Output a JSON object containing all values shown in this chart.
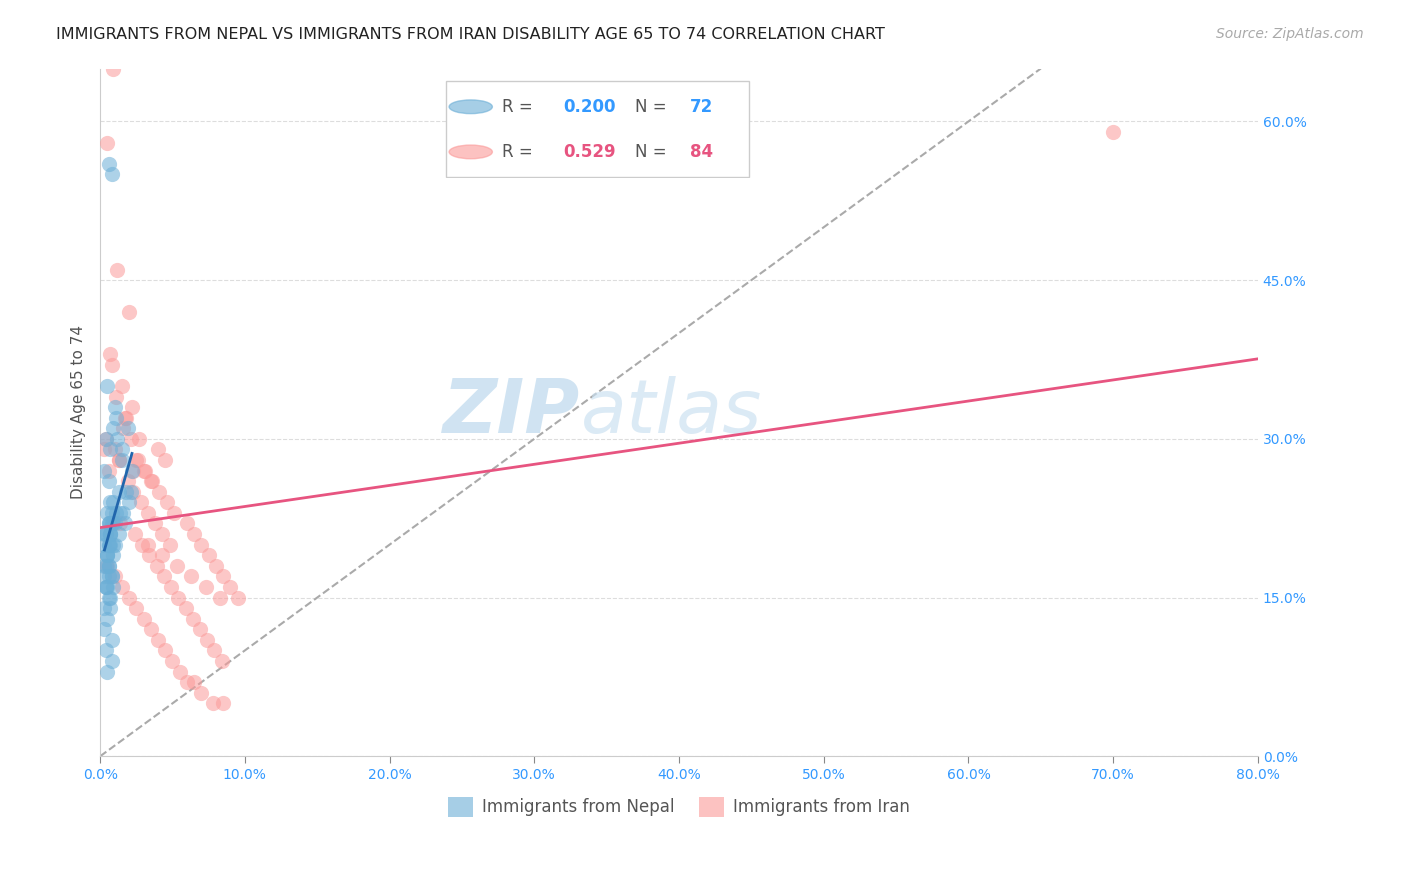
{
  "title": "IMMIGRANTS FROM NEPAL VS IMMIGRANTS FROM IRAN DISABILITY AGE 65 TO 74 CORRELATION CHART",
  "source": "Source: ZipAtlas.com",
  "xlabel": "",
  "ylabel": "Disability Age 65 to 74",
  "nepal_R": 0.2,
  "nepal_N": 72,
  "iran_R": 0.529,
  "iran_N": 84,
  "xlim": [
    0.0,
    0.8
  ],
  "ylim": [
    0.0,
    0.65
  ],
  "x_ticks": [
    0.0,
    0.1,
    0.2,
    0.3,
    0.4,
    0.5,
    0.6,
    0.7,
    0.8
  ],
  "y_ticks": [
    0.0,
    0.15,
    0.3,
    0.45,
    0.6
  ],
  "nepal_color": "#6baed6",
  "iran_color": "#fb9a99",
  "nepal_line_color": "#2166ac",
  "iran_line_color": "#e75480",
  "diagonal_color": "#aaaaaa",
  "grid_color": "#dddddd",
  "title_color": "#222222",
  "axis_label_color": "#555555",
  "tick_label_color": "#3399ff",
  "right_tick_color": "#3399ff",
  "legend_R_color_nepal": "#3399ff",
  "legend_N_color_nepal": "#3399ff",
  "legend_R_color_iran": "#e75480",
  "legend_N_color_iran": "#e75480",
  "nepal_x": [
    0.006,
    0.008,
    0.005,
    0.004,
    0.007,
    0.01,
    0.003,
    0.012,
    0.015,
    0.009,
    0.006,
    0.011,
    0.007,
    0.013,
    0.008,
    0.005,
    0.004,
    0.006,
    0.009,
    0.003,
    0.005,
    0.007,
    0.006,
    0.008,
    0.004,
    0.01,
    0.006,
    0.007,
    0.005,
    0.009,
    0.003,
    0.008,
    0.006,
    0.011,
    0.004,
    0.007,
    0.005,
    0.006,
    0.009,
    0.003,
    0.007,
    0.004,
    0.008,
    0.006,
    0.01,
    0.005,
    0.007,
    0.003,
    0.006,
    0.009,
    0.004,
    0.008,
    0.005,
    0.007,
    0.003,
    0.006,
    0.009,
    0.004,
    0.008,
    0.005,
    0.007,
    0.003,
    0.019,
    0.015,
    0.022,
    0.018,
    0.014,
    0.013,
    0.017,
    0.016,
    0.02,
    0.021
  ],
  "nepal_y": [
    0.56,
    0.55,
    0.35,
    0.3,
    0.29,
    0.33,
    0.27,
    0.3,
    0.28,
    0.31,
    0.26,
    0.32,
    0.24,
    0.25,
    0.22,
    0.23,
    0.21,
    0.22,
    0.24,
    0.2,
    0.19,
    0.21,
    0.18,
    0.17,
    0.16,
    0.2,
    0.15,
    0.14,
    0.13,
    0.16,
    0.12,
    0.11,
    0.22,
    0.23,
    0.21,
    0.2,
    0.19,
    0.18,
    0.22,
    0.17,
    0.21,
    0.16,
    0.23,
    0.2,
    0.22,
    0.19,
    0.21,
    0.18,
    0.17,
    0.2,
    0.1,
    0.09,
    0.08,
    0.22,
    0.21,
    0.2,
    0.19,
    0.18,
    0.17,
    0.16,
    0.15,
    0.14,
    0.31,
    0.29,
    0.27,
    0.25,
    0.23,
    0.21,
    0.22,
    0.23,
    0.24,
    0.25
  ],
  "iran_x": [
    0.005,
    0.009,
    0.012,
    0.02,
    0.007,
    0.015,
    0.018,
    0.01,
    0.025,
    0.03,
    0.035,
    0.008,
    0.022,
    0.016,
    0.013,
    0.027,
    0.04,
    0.045,
    0.006,
    0.019,
    0.023,
    0.028,
    0.033,
    0.038,
    0.043,
    0.048,
    0.011,
    0.017,
    0.021,
    0.026,
    0.031,
    0.036,
    0.041,
    0.046,
    0.051,
    0.004,
    0.014,
    0.024,
    0.029,
    0.034,
    0.039,
    0.044,
    0.049,
    0.054,
    0.059,
    0.064,
    0.069,
    0.074,
    0.079,
    0.084,
    0.003,
    0.013,
    0.023,
    0.033,
    0.043,
    0.053,
    0.063,
    0.073,
    0.083,
    0.06,
    0.065,
    0.07,
    0.075,
    0.08,
    0.085,
    0.09,
    0.095,
    0.7,
    0.005,
    0.01,
    0.015,
    0.02,
    0.025,
    0.03,
    0.035,
    0.04,
    0.045,
    0.05,
    0.055,
    0.06,
    0.065,
    0.07,
    0.078,
    0.085
  ],
  "iran_y": [
    0.58,
    0.65,
    0.46,
    0.42,
    0.38,
    0.35,
    0.32,
    0.29,
    0.28,
    0.27,
    0.26,
    0.37,
    0.33,
    0.31,
    0.28,
    0.3,
    0.29,
    0.28,
    0.27,
    0.26,
    0.25,
    0.24,
    0.23,
    0.22,
    0.21,
    0.2,
    0.34,
    0.32,
    0.3,
    0.28,
    0.27,
    0.26,
    0.25,
    0.24,
    0.23,
    0.3,
    0.22,
    0.21,
    0.2,
    0.19,
    0.18,
    0.17,
    0.16,
    0.15,
    0.14,
    0.13,
    0.12,
    0.11,
    0.1,
    0.09,
    0.29,
    0.28,
    0.27,
    0.2,
    0.19,
    0.18,
    0.17,
    0.16,
    0.15,
    0.22,
    0.21,
    0.2,
    0.19,
    0.18,
    0.17,
    0.16,
    0.15,
    0.59,
    0.18,
    0.17,
    0.16,
    0.15,
    0.14,
    0.13,
    0.12,
    0.11,
    0.1,
    0.09,
    0.08,
    0.07,
    0.07,
    0.06,
    0.05,
    0.05
  ]
}
